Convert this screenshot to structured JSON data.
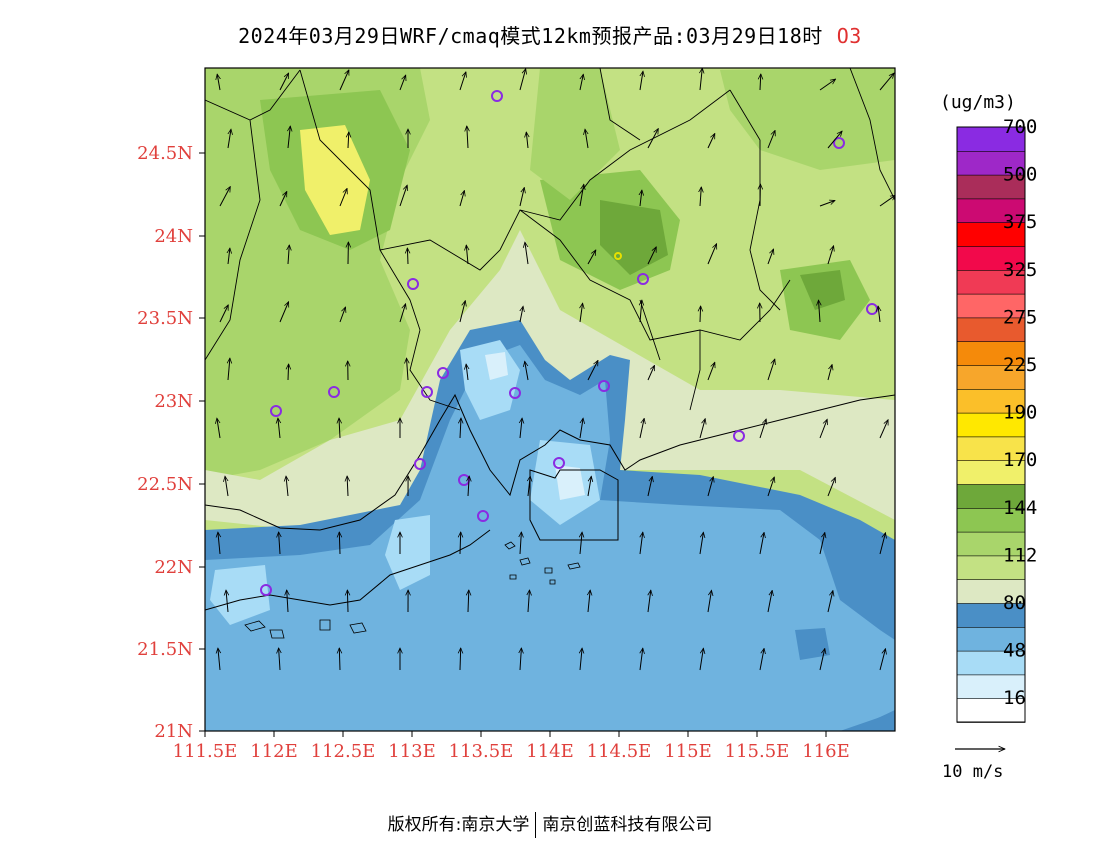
{
  "title": "2024年03月29日WRF/cmaq模式12km预报产品:03月29日18时",
  "species": "O3",
  "units": "(ug/m3)",
  "vector_ref_label": "10 m/s",
  "footer": {
    "left": "版权所有:南京大学",
    "right": "南京创蓝科技有限公司"
  },
  "axes": {
    "lon_labels": [
      "111.5E",
      "112E",
      "112.5E",
      "113E",
      "113.5E",
      "114E",
      "114.5E",
      "115E",
      "115.5E",
      "116E"
    ],
    "lat_labels": [
      "21N",
      "21.5N",
      "22N",
      "22.5N",
      "23N",
      "23.5N",
      "24N",
      "24.5N"
    ]
  },
  "colorbar": {
    "labels": [
      "16",
      "48",
      "80",
      "112",
      "144",
      "170",
      "190",
      "225",
      "275",
      "325",
      "375",
      "500",
      "700"
    ],
    "colors": [
      "#ffffff",
      "#d9f0fb",
      "#a8dcf6",
      "#6fb3df",
      "#4a8fc6",
      "#dde8c3",
      "#c3e183",
      "#a9d56b",
      "#8dc652",
      "#6ea83a",
      "#f0f06a",
      "#f8e34a",
      "#ffe800",
      "#fbbf29",
      "#f7a62b",
      "#f58a0a",
      "#e85a2e",
      "#ff6666",
      "#f03a55",
      "#f2094b",
      "#ff0000",
      "#cc0a72",
      "#aa2d5a",
      "#9e28c8",
      "#8a2be2"
    ]
  },
  "map_colors": {
    "sea_light": "#6fb3df",
    "sea_dark": "#4a8fc6",
    "sea_pale": "#a8dcf6",
    "sea_paler": "#d9f0fb",
    "land_pale": "#dde8c3",
    "land_lightgreen": "#c3e183",
    "land_green": "#a9d56b",
    "land_midgreen": "#8dc652",
    "land_darkgreen": "#6ea83a",
    "yellow": "#f0f06a"
  }
}
